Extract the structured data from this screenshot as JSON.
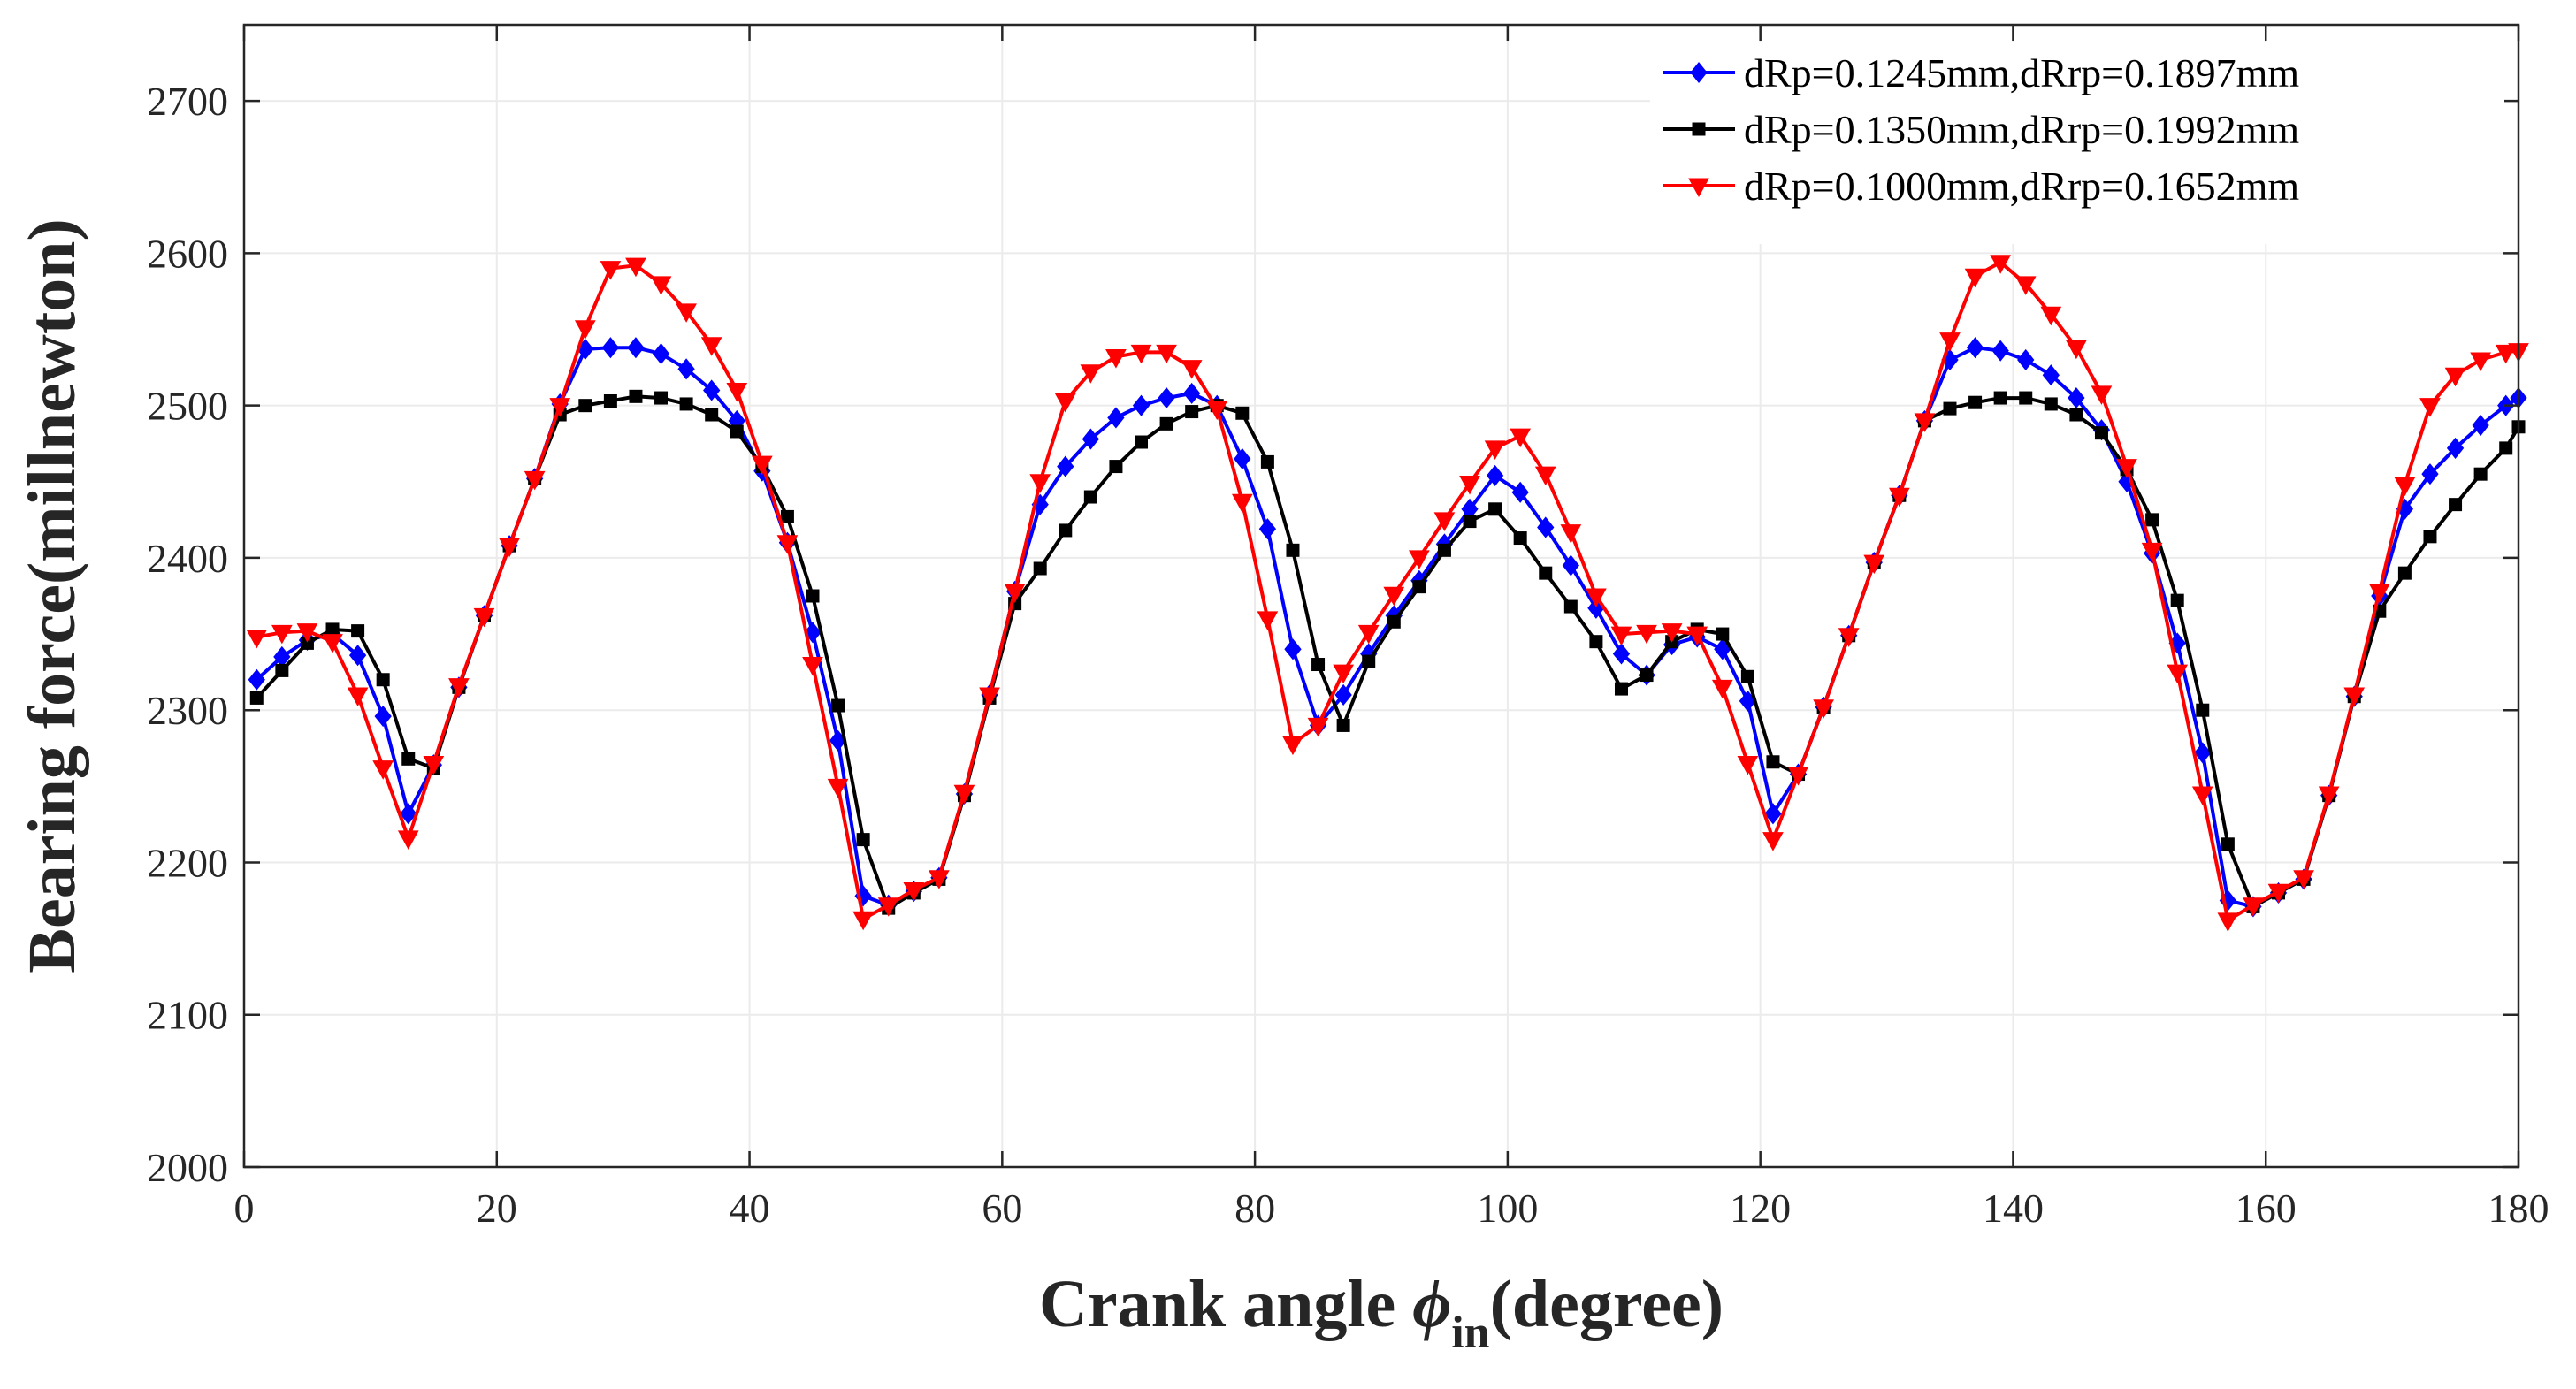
{
  "chart_data": {
    "type": "line",
    "xlabel_main": "Crank angle ",
    "xlabel_symbol": "ϕ",
    "xlabel_sub": "in",
    "xlabel_end": "(degree)",
    "ylabel": "Bearing force(millnewton)",
    "xlim": [
      0,
      180
    ],
    "ylim": [
      2000,
      2750
    ],
    "xticks": [
      0,
      20,
      40,
      60,
      80,
      100,
      120,
      140,
      160,
      180
    ],
    "yticks": [
      2000,
      2100,
      2200,
      2300,
      2400,
      2500,
      2600,
      2700
    ],
    "grid": true,
    "legend_position": "top-right",
    "series": [
      {
        "name": "dRp=0.1245mm,dRrp=0.1897mm",
        "color": "#0000ff",
        "marker": "diamond",
        "x": [
          1,
          3,
          5,
          7,
          9,
          11,
          13,
          15,
          17,
          19,
          21,
          23,
          25,
          27,
          29,
          31,
          33,
          35,
          37,
          39,
          41,
          43,
          45,
          47,
          49,
          51,
          53,
          55,
          57,
          59,
          61,
          63,
          65,
          67,
          69,
          71,
          73,
          75,
          77,
          79,
          81,
          83,
          85,
          87,
          89,
          91,
          93,
          95,
          97,
          99,
          101,
          103,
          105,
          107,
          109,
          111,
          113,
          115,
          117,
          119,
          121,
          123,
          125,
          127,
          129,
          131,
          133,
          135,
          137,
          139,
          141,
          143,
          145,
          147,
          149,
          151,
          153,
          155,
          157,
          159,
          161,
          163,
          165,
          167,
          169,
          171,
          173,
          175,
          177,
          179,
          180
        ],
        "y": [
          2320,
          2335,
          2346,
          2350,
          2336,
          2296,
          2232,
          2264,
          2315,
          2362,
          2408,
          2452,
          2501,
          2537,
          2538,
          2538,
          2534,
          2524,
          2510,
          2490,
          2457,
          2410,
          2351,
          2280,
          2178,
          2172,
          2181,
          2190,
          2245,
          2310,
          2378,
          2435,
          2460,
          2478,
          2492,
          2500,
          2505,
          2508,
          2500,
          2465,
          2419,
          2340,
          2290,
          2310,
          2337,
          2362,
          2385,
          2409,
          2432,
          2454,
          2443,
          2420,
          2395,
          2367,
          2337,
          2323,
          2343,
          2348,
          2340,
          2306,
          2232,
          2258,
          2302,
          2349,
          2397,
          2441,
          2490,
          2530,
          2538,
          2536,
          2530,
          2520,
          2505,
          2484,
          2450,
          2403,
          2344,
          2272,
          2175,
          2171,
          2180,
          2189,
          2244,
          2309,
          2375,
          2432,
          2455,
          2472,
          2487,
          2500,
          2505
        ]
      },
      {
        "name": "dRp=0.1350mm,dRrp=0.1992mm",
        "color": "#000000",
        "marker": "square",
        "x": [
          1,
          3,
          5,
          7,
          9,
          11,
          13,
          15,
          17,
          19,
          21,
          23,
          25,
          27,
          29,
          31,
          33,
          35,
          37,
          39,
          41,
          43,
          45,
          47,
          49,
          51,
          53,
          55,
          57,
          59,
          61,
          63,
          65,
          67,
          69,
          71,
          73,
          75,
          77,
          79,
          81,
          83,
          85,
          87,
          89,
          91,
          93,
          95,
          97,
          99,
          101,
          103,
          105,
          107,
          109,
          111,
          113,
          115,
          117,
          119,
          121,
          123,
          125,
          127,
          129,
          131,
          133,
          135,
          137,
          139,
          141,
          143,
          145,
          147,
          149,
          151,
          153,
          155,
          157,
          159,
          161,
          163,
          165,
          167,
          169,
          171,
          173,
          175,
          177,
          179,
          180
        ],
        "y": [
          2308,
          2326,
          2344,
          2353,
          2352,
          2320,
          2268,
          2262,
          2315,
          2362,
          2408,
          2452,
          2494,
          2500,
          2503,
          2506,
          2505,
          2501,
          2494,
          2483,
          2460,
          2427,
          2375,
          2303,
          2215,
          2170,
          2180,
          2189,
          2244,
          2308,
          2370,
          2393,
          2418,
          2440,
          2460,
          2476,
          2488,
          2496,
          2500,
          2495,
          2463,
          2405,
          2330,
          2290,
          2332,
          2358,
          2381,
          2405,
          2424,
          2432,
          2413,
          2390,
          2368,
          2345,
          2314,
          2323,
          2345,
          2353,
          2350,
          2322,
          2266,
          2258,
          2302,
          2349,
          2397,
          2441,
          2490,
          2498,
          2502,
          2505,
          2505,
          2501,
          2494,
          2482,
          2458,
          2425,
          2372,
          2300,
          2212,
          2171,
          2180,
          2189,
          2244,
          2309,
          2365,
          2390,
          2414,
          2435,
          2455,
          2472,
          2486
        ]
      },
      {
        "name": "dRp=0.1000mm,dRrp=0.1652mm",
        "color": "#ff0000",
        "marker": "triangle-down",
        "x": [
          1,
          3,
          5,
          7,
          9,
          11,
          13,
          15,
          17,
          19,
          21,
          23,
          25,
          27,
          29,
          31,
          33,
          35,
          37,
          39,
          41,
          43,
          45,
          47,
          49,
          51,
          53,
          55,
          57,
          59,
          61,
          63,
          65,
          67,
          69,
          71,
          73,
          75,
          77,
          79,
          81,
          83,
          85,
          87,
          89,
          91,
          93,
          95,
          97,
          99,
          101,
          103,
          105,
          107,
          109,
          111,
          113,
          115,
          117,
          119,
          121,
          123,
          125,
          127,
          129,
          131,
          133,
          135,
          137,
          139,
          141,
          143,
          145,
          147,
          149,
          151,
          153,
          155,
          157,
          159,
          161,
          163,
          165,
          167,
          169,
          171,
          173,
          175,
          177,
          179,
          180
        ],
        "y": [
          2348,
          2351,
          2352,
          2345,
          2310,
          2262,
          2216,
          2265,
          2316,
          2362,
          2408,
          2452,
          2500,
          2551,
          2590,
          2592,
          2580,
          2562,
          2540,
          2510,
          2462,
          2410,
          2330,
          2250,
          2163,
          2172,
          2182,
          2190,
          2246,
          2310,
          2378,
          2450,
          2503,
          2522,
          2532,
          2535,
          2535,
          2525,
          2498,
          2437,
          2360,
          2278,
          2290,
          2325,
          2351,
          2376,
          2400,
          2425,
          2449,
          2472,
          2480,
          2455,
          2417,
          2375,
          2350,
          2351,
          2352,
          2350,
          2315,
          2265,
          2215,
          2258,
          2302,
          2349,
          2397,
          2441,
          2490,
          2543,
          2585,
          2594,
          2580,
          2560,
          2538,
          2508,
          2460,
          2405,
          2325,
          2245,
          2162,
          2172,
          2181,
          2190,
          2245,
          2310,
          2378,
          2448,
          2500,
          2520,
          2530,
          2535,
          2536
        ]
      }
    ]
  }
}
